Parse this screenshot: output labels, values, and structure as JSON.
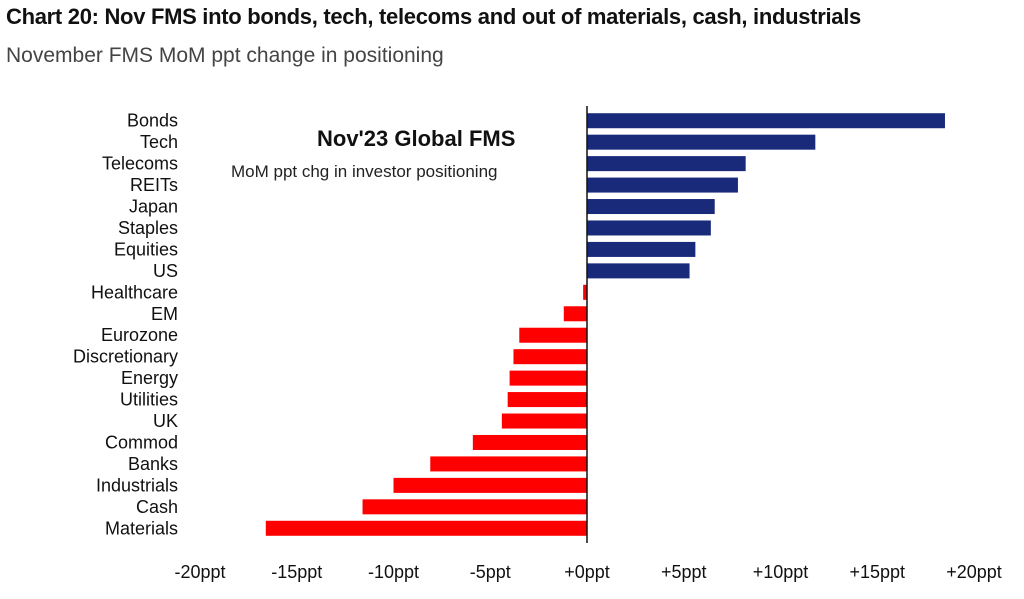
{
  "header": {
    "title": "Chart 20: Nov FMS into bonds, tech, telecoms and out of materials, cash, industrials",
    "subtitle": "November FMS MoM ppt change in positioning"
  },
  "colors": {
    "positive": "#1a2a7a",
    "negative": "#ff0000",
    "axis": "#111111"
  },
  "chart_data": {
    "type": "bar",
    "orientation": "horizontal",
    "title": "Nov'23 Global FMS",
    "subtitle": "MoM ppt chg in investor positioning",
    "categories": [
      "Bonds",
      "Tech",
      "Telecoms",
      "REITs",
      "Japan",
      "Staples",
      "Equities",
      "US",
      "Healthcare",
      "EM",
      "Eurozone",
      "Discretionary",
      "Energy",
      "Utilities",
      "UK",
      "Commod",
      "Banks",
      "Industrials",
      "Cash",
      "Materials"
    ],
    "values": [
      18.5,
      11.8,
      8.2,
      7.8,
      6.6,
      6.4,
      5.6,
      5.3,
      -0.2,
      -1.2,
      -3.5,
      -3.8,
      -4.0,
      -4.1,
      -4.4,
      -5.9,
      -8.1,
      -10.0,
      -11.6,
      -16.6
    ],
    "xlim": [
      -20,
      20
    ],
    "xticks": [
      -20,
      -15,
      -10,
      -5,
      0,
      5,
      10,
      15,
      20
    ],
    "xtick_labels": [
      "-20ppt",
      "-15ppt",
      "-10ppt",
      "-5ppt",
      "+0ppt",
      "+5ppt",
      "+10ppt",
      "+15ppt",
      "+20ppt"
    ],
    "grid": false,
    "legend": "none"
  }
}
